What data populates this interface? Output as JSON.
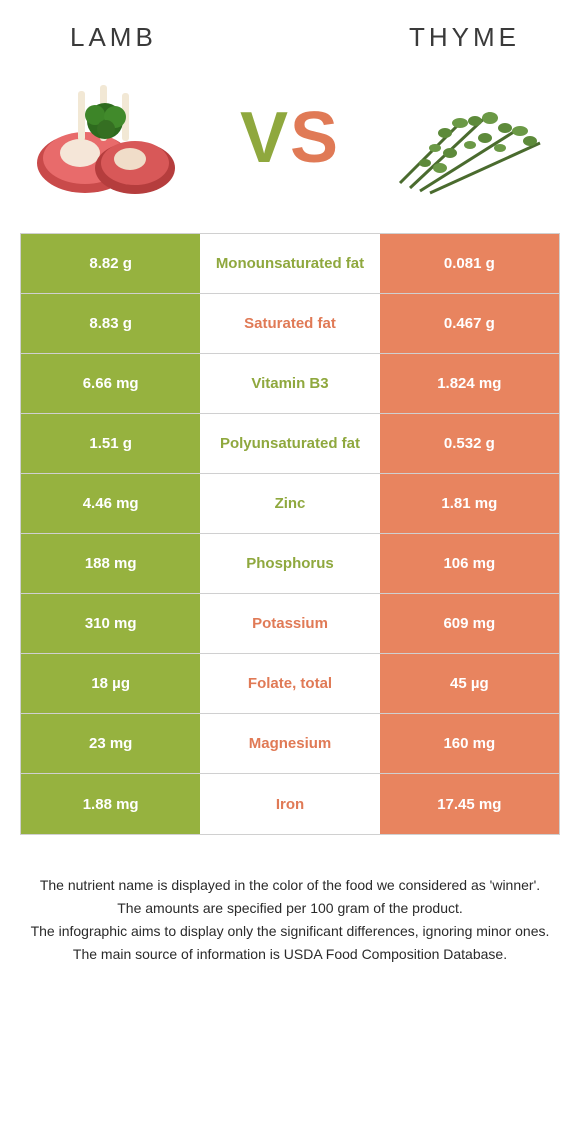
{
  "header": {
    "left_title": "LAMB",
    "right_title": "THYME"
  },
  "vs": {
    "v": "V",
    "s": "S"
  },
  "colors": {
    "left_bg": "#96b23f",
    "right_bg": "#e8845f",
    "green_text": "#8fa83e",
    "orange_text": "#e07a56"
  },
  "rows": [
    {
      "left": "8.82 g",
      "mid": "Monounsaturated fat",
      "right": "0.081 g",
      "winner": "left"
    },
    {
      "left": "8.83 g",
      "mid": "Saturated fat",
      "right": "0.467 g",
      "winner": "right"
    },
    {
      "left": "6.66 mg",
      "mid": "Vitamin B3",
      "right": "1.824 mg",
      "winner": "left"
    },
    {
      "left": "1.51 g",
      "mid": "Polyunsaturated fat",
      "right": "0.532 g",
      "winner": "left"
    },
    {
      "left": "4.46 mg",
      "mid": "Zinc",
      "right": "1.81 mg",
      "winner": "left"
    },
    {
      "left": "188 mg",
      "mid": "Phosphorus",
      "right": "106 mg",
      "winner": "left"
    },
    {
      "left": "310 mg",
      "mid": "Potassium",
      "right": "609 mg",
      "winner": "right"
    },
    {
      "left": "18 µg",
      "mid": "Folate, total",
      "right": "45 µg",
      "winner": "right"
    },
    {
      "left": "23 mg",
      "mid": "Magnesium",
      "right": "160 mg",
      "winner": "right"
    },
    {
      "left": "1.88 mg",
      "mid": "Iron",
      "right": "17.45 mg",
      "winner": "right"
    }
  ],
  "footer": {
    "line1": "The nutrient name is displayed in the color of the food we considered as 'winner'.",
    "line2": "The amounts are specified per 100 gram of the product.",
    "line3": "The infographic aims to display only the significant differences, ignoring minor ones.",
    "line4": "The main source of information is USDA Food Composition Database."
  }
}
